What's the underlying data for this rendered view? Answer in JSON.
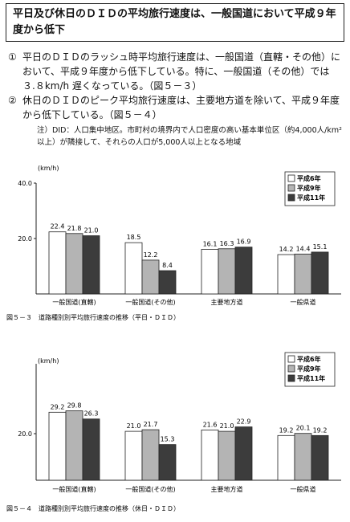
{
  "header": {
    "title": "平日及び休日のＤＩＤの平均旅行速度は、一般国道において平成９年度から低下"
  },
  "items": [
    {
      "marker": "①",
      "text": "平日のＤＩＤのラッシュ時平均旅行速度は、一般国道（直轄・その他）において、平成９年度から低下している。特に、一般国道（その他）では３.８km/h 遅くなっている。（図５－３）"
    },
    {
      "marker": "②",
      "text": "休日のＤＩＤのピーク平均旅行速度は、主要地方道を除いて、平成９年度から低下している。（図５－４）"
    }
  ],
  "note": "注）DID：人口集中地区。市町村の境界内で人口密度の高い基本単位区（約4,000人/km²以上）が隣接して、それらの人口が5,000人以上となる地域",
  "chart_data": [
    {
      "type": "bar",
      "title": "図５－３　道路種別別平均旅行速度の推移（平日・ＤＩＤ）",
      "y_label": "(km/h)",
      "categories": [
        "一般国道(直轄)",
        "一般国道(その他)",
        "主要地方道",
        "一般県道"
      ],
      "series": [
        {
          "name": "平成6年",
          "color": "#ffffff",
          "values": [
            22.4,
            18.5,
            16.1,
            14.2
          ],
          "value_labels": [
            "22.4",
            "18.5",
            "16.1",
            "14.2"
          ]
        },
        {
          "name": "平成9年",
          "color": "#b4b4b4",
          "values": [
            21.8,
            12.2,
            16.3,
            14.4
          ],
          "value_labels": [
            "21.8",
            "12.2",
            "16.3",
            "14.4"
          ]
        },
        {
          "name": "平成11年",
          "color": "#3c3c3c",
          "values": [
            21.0,
            8.4,
            16.9,
            15.1
          ],
          "value_labels": [
            "21.0",
            "8.4",
            "16.9",
            "15.1"
          ]
        }
      ],
      "ylim": [
        0,
        40
      ],
      "yticks": [
        {
          "value": 20,
          "label": "20.0"
        },
        {
          "value": 40,
          "label": "40.0"
        }
      ],
      "legend": "top-right"
    },
    {
      "type": "bar",
      "title": "図５－４　道路種別別平均旅行速度の推移（休日・ＤＩＤ）",
      "y_label": "(km/h)",
      "categories": [
        "一般国道(直轄)",
        "一般国道(その他)",
        "主要地方道",
        "一般県道"
      ],
      "series": [
        {
          "name": "平成6年",
          "color": "#ffffff",
          "values": [
            29.2,
            21.0,
            21.6,
            19.2
          ],
          "value_labels": [
            "29.2",
            "21.0",
            "21.6",
            "19.2"
          ]
        },
        {
          "name": "平成9年",
          "color": "#b4b4b4",
          "values": [
            29.8,
            21.7,
            21.0,
            20.1
          ],
          "value_labels": [
            "29.8",
            "21.7",
            "21.0",
            "20.1"
          ]
        },
        {
          "name": "平成11年",
          "color": "#3c3c3c",
          "values": [
            26.3,
            15.3,
            22.9,
            19.2
          ],
          "value_labels": [
            "26.3",
            "15.3",
            "22.9",
            "19.2"
          ]
        }
      ],
      "ylim": [
        0,
        50
      ],
      "yticks": [
        {
          "value": 20,
          "label": "20.0"
        }
      ],
      "legend": "top-right"
    }
  ]
}
